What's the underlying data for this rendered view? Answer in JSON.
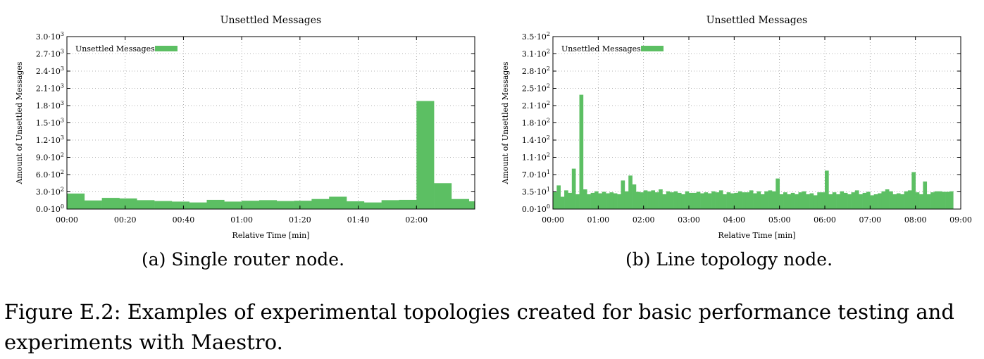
{
  "chart_data": [
    {
      "type": "bar",
      "title": "Unsettled Messages",
      "xlabel": "Relative Time [min]",
      "ylabel": "Amount of Unsettled Messages",
      "legend": {
        "label": "Unsettled Messages",
        "placement": "top-left",
        "color": "#5cbf63"
      },
      "grid": true,
      "xlim_seconds": [
        0,
        140
      ],
      "bin_width_seconds": 6,
      "ylim": [
        0,
        3000
      ],
      "yticks": [
        0,
        300,
        600,
        900,
        1200,
        1500,
        1800,
        2100,
        2400,
        2700,
        3000
      ],
      "ytick_labels": [
        [
          "0.0",
          "0"
        ],
        [
          "3.0",
          "2"
        ],
        [
          "6.0",
          "2"
        ],
        [
          "9.0",
          "2"
        ],
        [
          "1.2",
          "3"
        ],
        [
          "1.5",
          "3"
        ],
        [
          "1.8",
          "3"
        ],
        [
          "2.1",
          "3"
        ],
        [
          "2.4",
          "3"
        ],
        [
          "2.7",
          "3"
        ],
        [
          "3.0",
          "3"
        ]
      ],
      "xtick_labels": [
        "00:00",
        "00:20",
        "00:40",
        "01:00",
        "01:20",
        "01:40",
        "02:00"
      ],
      "values": [
        270,
        150,
        195,
        185,
        155,
        140,
        130,
        115,
        160,
        130,
        145,
        155,
        140,
        145,
        175,
        215,
        135,
        115,
        155,
        160,
        1880,
        450,
        175,
        135
      ]
    },
    {
      "type": "bar",
      "title": "Unsettled Messages",
      "xlabel": "Relative Time [min]",
      "ylabel": "Amount of Unsettled Messages",
      "legend": {
        "label": "Unsettled Messages",
        "placement": "top-left",
        "color": "#5cbf63"
      },
      "grid": true,
      "xlim_seconds": [
        0,
        540
      ],
      "bin_width_seconds": 5,
      "ylim": [
        0,
        350
      ],
      "yticks": [
        0,
        35,
        70,
        105,
        140,
        175,
        210,
        245,
        280,
        315,
        350
      ],
      "ytick_labels": [
        [
          "0.0",
          "0"
        ],
        [
          "3.5",
          "1"
        ],
        [
          "7.0",
          "1"
        ],
        [
          "1.1",
          "2"
        ],
        [
          "1.4",
          "2"
        ],
        [
          "1.8",
          "2"
        ],
        [
          "2.1",
          "2"
        ],
        [
          "2.5",
          "2"
        ],
        [
          "2.8",
          "2"
        ],
        [
          "3.1",
          "2"
        ],
        [
          "3.5",
          "2"
        ]
      ],
      "xtick_labels": [
        "00:00",
        "01:00",
        "02:00",
        "03:00",
        "04:00",
        "05:00",
        "06:00",
        "07:00",
        "08:00",
        "09:00"
      ],
      "values": [
        35,
        48,
        25,
        38,
        33,
        82,
        30,
        232,
        40,
        30,
        33,
        36,
        32,
        35,
        32,
        34,
        32,
        30,
        58,
        36,
        68,
        50,
        35,
        34,
        38,
        36,
        38,
        34,
        40,
        30,
        36,
        34,
        36,
        33,
        30,
        36,
        33,
        33,
        35,
        32,
        34,
        32,
        36,
        34,
        38,
        30,
        34,
        32,
        33,
        36,
        34,
        34,
        38,
        32,
        36,
        30,
        36,
        38,
        36,
        62,
        30,
        34,
        30,
        33,
        30,
        34,
        36,
        30,
        32,
        28,
        34,
        34,
        78,
        30,
        34,
        30,
        36,
        33,
        30,
        34,
        38,
        30,
        33,
        35,
        28,
        30,
        32,
        36,
        40,
        36,
        30,
        32,
        30,
        36,
        38,
        75,
        34,
        30,
        56,
        30,
        34,
        36,
        36,
        35,
        35,
        36
      ]
    }
  ],
  "captions": {
    "a": "(a) Single router node.",
    "b": "(b) Line topology node."
  },
  "figure_caption": {
    "line1": "Figure E.2: Examples of experimental topologies created for basic performance testing and",
    "line2": "experiments with Maestro."
  }
}
